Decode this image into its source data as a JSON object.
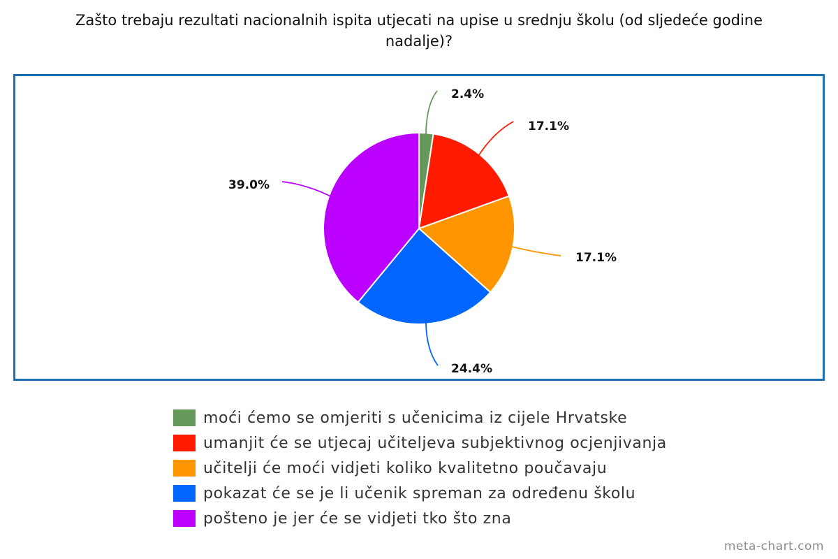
{
  "chart_data": {
    "type": "pie",
    "title": "Zašto trebaju rezultati nacionalnih ispita utjecati na upise u srednju školu (od sljedeće godine nadalje)?",
    "legend_position": "bottom",
    "slices": [
      {
        "label": "moći ćemo se omjeriti s učenicima iz cijele Hrvatske",
        "value": 2.4,
        "value_label": "2.4%",
        "color": "#65995a"
      },
      {
        "label": "umanjit će se utjecaj učiteljeva subjektivnog ocjenjivanja",
        "value": 17.1,
        "value_label": "17.1%",
        "color": "#ff1a00"
      },
      {
        "label": "učitelji će moći vidjeti koliko kvalitetno poučavaju",
        "value": 17.1,
        "value_label": "17.1%",
        "color": "#ff9500"
      },
      {
        "label": "pokazat će se je li učenik spreman za određenu školu",
        "value": 24.4,
        "value_label": "24.4%",
        "color": "#0066ff"
      },
      {
        "label": "pošteno je jer će se vidjeti tko što zna",
        "value": 39.0,
        "value_label": "39.0%",
        "color": "#bb00ff"
      }
    ]
  },
  "watermark": "meta-chart.com"
}
